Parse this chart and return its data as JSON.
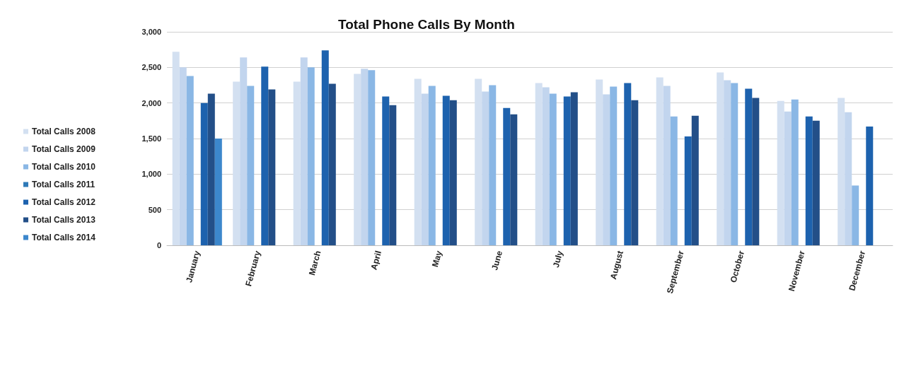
{
  "chart_data": {
    "type": "bar",
    "title": "Total Phone Calls By Month",
    "categories": [
      "January",
      "February",
      "March",
      "April",
      "May",
      "June",
      "July",
      "August",
      "September",
      "October",
      "November",
      "December"
    ],
    "series": [
      {
        "name": "Total Calls 2008",
        "color": "#d3e0f1",
        "values": [
          2720,
          2300,
          2300,
          2410,
          2340,
          2340,
          2280,
          2330,
          2360,
          2430,
          2030,
          2070
        ]
      },
      {
        "name": "Total Calls 2009",
        "color": "#c2d5ee",
        "values": [
          2500,
          2640,
          2640,
          2480,
          2130,
          2160,
          2220,
          2120,
          2240,
          2320,
          1880,
          1870
        ]
      },
      {
        "name": "Total Calls 2010",
        "color": "#8ab7e5",
        "values": [
          2380,
          2240,
          2500,
          2460,
          2240,
          2250,
          2130,
          2230,
          1810,
          2280,
          2050,
          840
        ]
      },
      {
        "name": "Total Calls 2011",
        "color": "#2f7ab8",
        "values": [
          null,
          null,
          null,
          null,
          null,
          null,
          null,
          null,
          null,
          null,
          null,
          null
        ]
      },
      {
        "name": "Total Calls 2012",
        "color": "#1d62ae",
        "values": [
          2000,
          2510,
          2740,
          2090,
          2100,
          1930,
          2090,
          2280,
          1530,
          2200,
          1810,
          1670
        ]
      },
      {
        "name": "Total Calls 2013",
        "color": "#234f88",
        "values": [
          2130,
          2190,
          2270,
          1970,
          2040,
          1840,
          2150,
          2040,
          1820,
          2070,
          1750,
          null
        ]
      },
      {
        "name": "Total Calls 2014",
        "color": "#3c87cc",
        "values": [
          1500,
          null,
          null,
          null,
          null,
          null,
          null,
          null,
          null,
          null,
          null,
          null
        ]
      }
    ],
    "ylim": [
      0,
      3000
    ],
    "yticks": [
      0,
      500,
      {
        "value": 1000,
        "label": "1,000"
      },
      {
        "value": 1500,
        "label": "1,500"
      },
      {
        "value": 2000,
        "label": "2,000"
      },
      {
        "value": 2500,
        "label": "2,500"
      },
      {
        "value": 3000,
        "label": "3,000"
      }
    ],
    "grid": "y",
    "legend": "left"
  }
}
